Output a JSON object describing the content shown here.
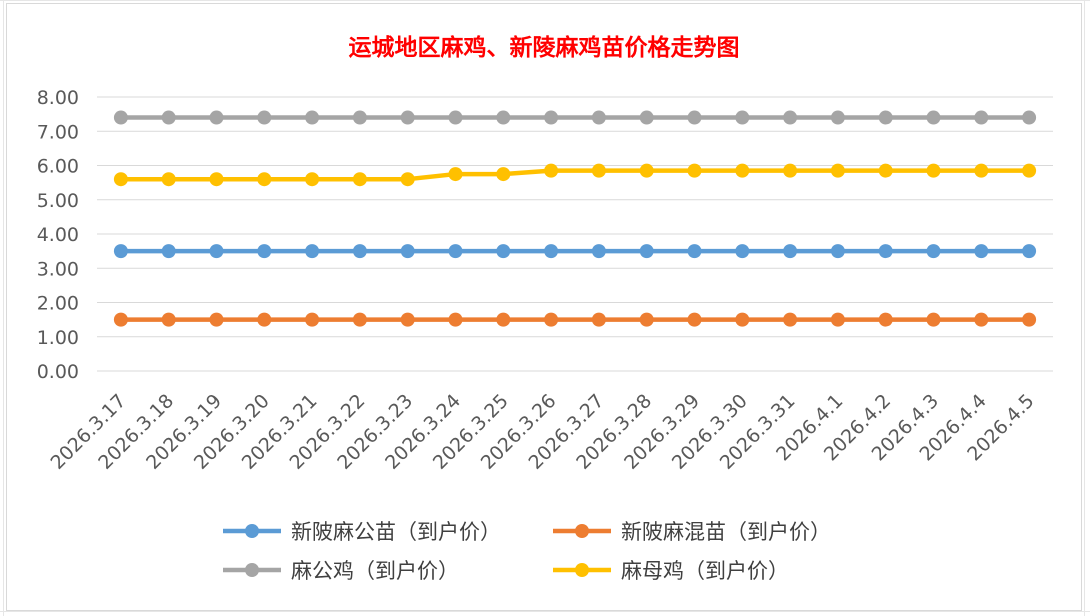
{
  "chart_data": {
    "type": "line",
    "title": "运城地区麻鸡、新陵麻鸡苗价格走势图",
    "ylim": [
      0,
      8
    ],
    "y_ticks": [
      "0.00",
      "1.00",
      "2.00",
      "3.00",
      "4.00",
      "5.00",
      "6.00",
      "7.00",
      "8.00"
    ],
    "categories": [
      "2026.3.17",
      "2026.3.18",
      "2026.3.19",
      "2026.3.20",
      "2026.3.21",
      "2026.3.22",
      "2026.3.23",
      "2026.3.24",
      "2026.3.25",
      "2026.3.26",
      "2026.3.27",
      "2026.3.28",
      "2026.3.29",
      "2026.3.30",
      "2026.3.31",
      "2026.4.1",
      "2026.4.2",
      "2026.4.3",
      "2026.4.4",
      "2026.4.5"
    ],
    "grid": true,
    "legend_position": "bottom",
    "series": [
      {
        "name": "新陂麻公苗（到户价）",
        "color": "#5b9bd5",
        "values": [
          3.5,
          3.5,
          3.5,
          3.5,
          3.5,
          3.5,
          3.5,
          3.5,
          3.5,
          3.5,
          3.5,
          3.5,
          3.5,
          3.5,
          3.5,
          3.5,
          3.5,
          3.5,
          3.5,
          3.5
        ]
      },
      {
        "name": "新陂麻混苗（到户价）",
        "color": "#ed7d31",
        "values": [
          1.5,
          1.5,
          1.5,
          1.5,
          1.5,
          1.5,
          1.5,
          1.5,
          1.5,
          1.5,
          1.5,
          1.5,
          1.5,
          1.5,
          1.5,
          1.5,
          1.5,
          1.5,
          1.5,
          1.5
        ]
      },
      {
        "name": "麻公鸡（到户价）",
        "color": "#a5a5a5",
        "values": [
          7.4,
          7.4,
          7.4,
          7.4,
          7.4,
          7.4,
          7.4,
          7.4,
          7.4,
          7.4,
          7.4,
          7.4,
          7.4,
          7.4,
          7.4,
          7.4,
          7.4,
          7.4,
          7.4,
          7.4
        ]
      },
      {
        "name": "麻母鸡（到户价）",
        "color": "#ffc000",
        "values": [
          5.6,
          5.6,
          5.6,
          5.6,
          5.6,
          5.6,
          5.6,
          5.75,
          5.75,
          5.85,
          5.85,
          5.85,
          5.85,
          5.85,
          5.85,
          5.85,
          5.85,
          5.85,
          5.85,
          5.85
        ]
      }
    ]
  }
}
